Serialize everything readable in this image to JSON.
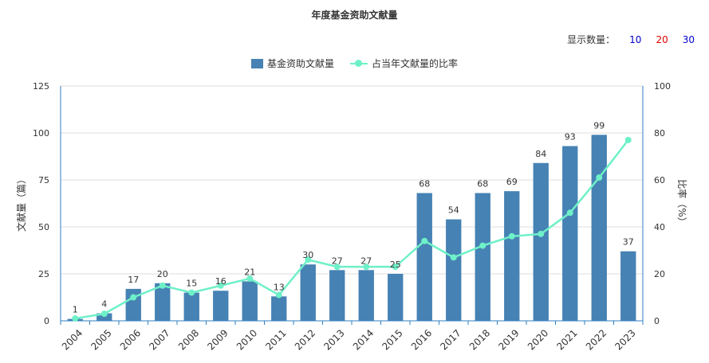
{
  "chart_data": {
    "type": "bar",
    "title": "年度基金资助文献量",
    "categories": [
      "2004",
      "2005",
      "2006",
      "2007",
      "2008",
      "2009",
      "2010",
      "2011",
      "2012",
      "2013",
      "2014",
      "2015",
      "2016",
      "2017",
      "2018",
      "2019",
      "2020",
      "2021",
      "2022",
      "2023"
    ],
    "series": [
      {
        "name": "基金资助文献量",
        "type": "bar",
        "axis": "left",
        "color": "#4682B4",
        "values": [
          1,
          4,
          17,
          20,
          15,
          16,
          21,
          13,
          30,
          27,
          27,
          25,
          68,
          54,
          68,
          69,
          84,
          93,
          99,
          37
        ]
      },
      {
        "name": "占当年文献量的比率",
        "type": "line",
        "axis": "right",
        "color": "#6EF0C8",
        "values": [
          1,
          3,
          10,
          15,
          12,
          15,
          18,
          11,
          26,
          23,
          23,
          23,
          34,
          27,
          32,
          36,
          37,
          46,
          61,
          77
        ]
      }
    ],
    "ylabel": "文献量（篇）",
    "y2label": "比率（%）",
    "ylim": [
      0,
      125
    ],
    "yticks": [
      0,
      25,
      50,
      75,
      100,
      125
    ],
    "y2lim": [
      0,
      100
    ],
    "y2ticks": [
      0,
      20,
      40,
      60,
      80,
      100
    ],
    "grid": true,
    "legend_position": "top-center"
  },
  "controls": {
    "count_label": "显示数量：",
    "options": [
      {
        "label": "10",
        "color": "#0000cc"
      },
      {
        "label": "20",
        "color": "#e00000"
      },
      {
        "label": "30",
        "color": "#0000cc"
      }
    ]
  },
  "colors": {
    "axis": "#2f7fc1",
    "grid": "#dddddd",
    "text": "#333333"
  }
}
